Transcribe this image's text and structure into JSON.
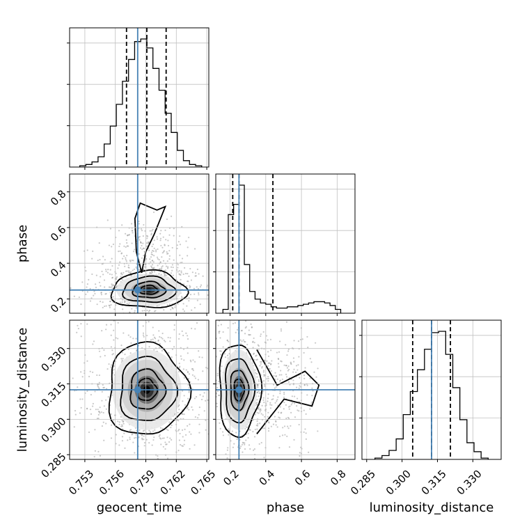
{
  "chart_data": {
    "type": "corner",
    "parameters": [
      "geocent_time",
      "phase",
      "luminosity_distance"
    ],
    "truths": {
      "geocent_time": 0.7582,
      "phase": 0.25,
      "luminosity_distance": 0.3125
    },
    "colors": {
      "truth": "#4682b4",
      "contour": "#000000",
      "grid": "#c0c0c0"
    },
    "axes": {
      "geocent_time": {
        "range": [
          0.7515,
          0.7652
        ],
        "ticks": [
          "0.753",
          "0.756",
          "0.759",
          "0.762",
          "0.765"
        ],
        "tick_values": [
          0.753,
          0.756,
          0.759,
          0.762,
          0.765
        ],
        "label": "geocent_time"
      },
      "phase": {
        "range": [
          0.12,
          0.9
        ],
        "ticks": [
          "0.2",
          "0.4",
          "0.6",
          "0.8"
        ],
        "tick_values": [
          0.2,
          0.4,
          0.6,
          0.8
        ],
        "label": "phase"
      },
      "luminosity_distance": {
        "range": [
          0.283,
          0.342
        ],
        "ticks": [
          "0.285",
          "0.300",
          "0.315",
          "0.330"
        ],
        "tick_values": [
          0.285,
          0.3,
          0.315,
          0.33
        ],
        "label": "luminosity_distance"
      }
    },
    "histograms": {
      "geocent_time": {
        "quantiles": [
          0.7571,
          0.7591,
          0.761
        ],
        "bin_edges": [
          0.7525,
          0.7531,
          0.7537,
          0.7543,
          0.7549,
          0.7555,
          0.7561,
          0.7567,
          0.7573,
          0.7579,
          0.7585,
          0.7591,
          0.7597,
          0.7603,
          0.7609,
          0.7615,
          0.7621,
          0.7627,
          0.7633,
          0.7639,
          0.7645
        ],
        "counts": [
          0.01,
          0.02,
          0.04,
          0.08,
          0.18,
          0.32,
          0.49,
          0.67,
          0.84,
          0.98,
          1.0,
          0.93,
          0.77,
          0.6,
          0.42,
          0.27,
          0.13,
          0.05,
          0.02,
          0.01
        ]
      },
      "phase": {
        "quantiles": [
          0.215,
          0.25,
          0.44
        ],
        "bin_edges": [
          0.16,
          0.19,
          0.22,
          0.25,
          0.28,
          0.31,
          0.34,
          0.37,
          0.4,
          0.43,
          0.46,
          0.49,
          0.52,
          0.55,
          0.58,
          0.61,
          0.64,
          0.67,
          0.7,
          0.73,
          0.76,
          0.79,
          0.82
        ],
        "counts": [
          0.03,
          0.77,
          0.85,
          1.0,
          0.38,
          0.17,
          0.11,
          0.08,
          0.07,
          0.05,
          0.04,
          0.04,
          0.05,
          0.05,
          0.06,
          0.07,
          0.08,
          0.09,
          0.09,
          0.08,
          0.06,
          0.03
        ]
      },
      "luminosity_distance": {
        "quantiles": [
          0.3045,
          0.3125,
          0.3205
        ],
        "bin_edges": [
          0.2885,
          0.2915,
          0.2945,
          0.2975,
          0.3005,
          0.3035,
          0.3065,
          0.3095,
          0.3125,
          0.3155,
          0.3185,
          0.3215,
          0.3245,
          0.3275,
          0.3305,
          0.3335,
          0.3365
        ],
        "counts": [
          0.01,
          0.03,
          0.07,
          0.16,
          0.35,
          0.53,
          0.7,
          0.86,
          0.99,
          1.0,
          0.82,
          0.56,
          0.31,
          0.13,
          0.06,
          0.01
        ]
      }
    },
    "pairs": [
      {
        "x": "geocent_time",
        "y": "phase",
        "center": [
          0.7593,
          0.25
        ],
        "spread": [
          0.0016,
          0.045
        ],
        "secondary_mode": [
          0.759,
          0.62
        ]
      },
      {
        "x": "geocent_time",
        "y": "luminosity_distance",
        "center": [
          0.7591,
          0.3125
        ],
        "spread": [
          0.0017,
          0.0085
        ]
      },
      {
        "x": "phase",
        "y": "luminosity_distance",
        "center": [
          0.25,
          0.3125
        ],
        "spread": [
          0.05,
          0.0085
        ],
        "secondary_mode": [
          0.62,
          0.3115
        ]
      }
    ]
  }
}
